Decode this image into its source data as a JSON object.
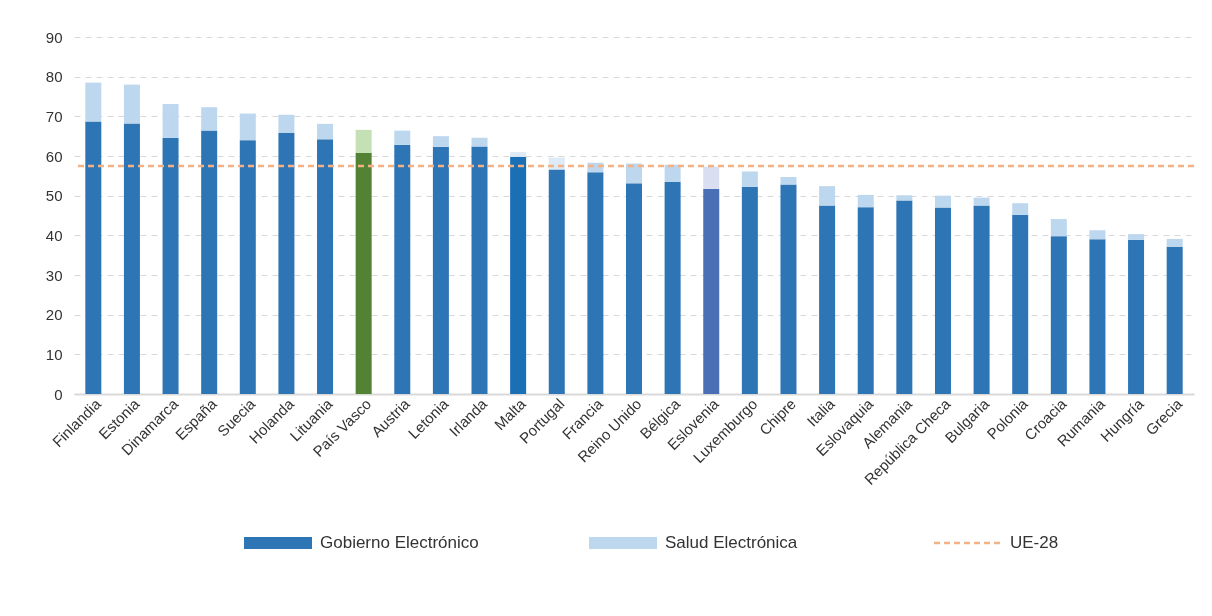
{
  "chart_data": {
    "type": "bar",
    "stacked": true,
    "categories": [
      "Finlandia",
      "Estonia",
      "Dinamarca",
      "España",
      "Suecia",
      "Holanda",
      "Lituania",
      "País Vasco",
      "Austria",
      "Letonia",
      "Irlanda",
      "Malta",
      "Portugal",
      "Francia",
      "Reino Unido",
      "Bélgica",
      "Eslovenia",
      "Luxemburgo",
      "Chipre",
      "Italia",
      "Eslovaquia",
      "Alemania",
      "República Checa",
      "Bulgaria",
      "Polonia",
      "Croacia",
      "Rumania",
      "Hungría",
      "Grecia"
    ],
    "series": [
      {
        "name": "Gobierno Electrónico",
        "color": "#2e75b6",
        "colors": [
          "#2e75b6",
          "#2e75b6",
          "#2e75b6",
          "#2e75b6",
          "#2e75b6",
          "#2e75b6",
          "#2e75b6",
          "#548235",
          "#2e75b6",
          "#2e75b6",
          "#2e75b6",
          "#1a6fb5",
          "#2e75b6",
          "#2e75b6",
          "#2e75b6",
          "#2e75b6",
          "#4a6fb5",
          "#2e75b6",
          "#2e75b6",
          "#2e75b6",
          "#2e75b6",
          "#2e75b6",
          "#2e75b6",
          "#2e75b6",
          "#2e75b6",
          "#2e75b6",
          "#2e75b6",
          "#2e75b6",
          "#2e75b6"
        ],
        "values": [
          68.7,
          68.2,
          64.6,
          66.4,
          64.0,
          65.8,
          64.2,
          60.8,
          62.8,
          62.3,
          62.4,
          59.8,
          56.6,
          55.9,
          53.1,
          53.5,
          51.7,
          52.2,
          52.8,
          47.5,
          47.1,
          48.8,
          47.0,
          47.5,
          45.2,
          39.8,
          39.0,
          38.9,
          37.1
        ]
      },
      {
        "name": "Salud Electrónica",
        "color": "#bdd7ee",
        "colors": [
          "#bdd7ee",
          "#bdd7ee",
          "#bdd7ee",
          "#bdd7ee",
          "#bdd7ee",
          "#bdd7ee",
          "#bdd7ee",
          "#c5e0b4",
          "#bdd7ee",
          "#bdd7ee",
          "#bdd7ee",
          "#deebf7",
          "#ddeaf7",
          "#bdd7ee",
          "#bdd7ee",
          "#bdd7ee",
          "#d9dff0",
          "#bdd7ee",
          "#bdd7ee",
          "#bdd7ee",
          "#bdd7ee",
          "#bdd7ee",
          "#bdd7ee",
          "#bdd7ee",
          "#bdd7ee",
          "#bdd7ee",
          "#bdd7ee",
          "#bdd7ee",
          "#bdd7ee"
        ],
        "values": [
          9.8,
          9.8,
          8.5,
          5.9,
          6.7,
          4.6,
          3.9,
          5.8,
          3.6,
          2.7,
          2.2,
          1.2,
          3.0,
          2.4,
          5.0,
          4.3,
          5.6,
          3.9,
          1.9,
          4.9,
          3.1,
          1.3,
          3.0,
          2.0,
          2.9,
          4.3,
          2.3,
          1.4,
          2.0
        ]
      }
    ],
    "ref_lines": [
      {
        "axis": "y",
        "value": 57.5,
        "label": "UE-28",
        "color": "#f4b183",
        "line_style": "dashed"
      }
    ],
    "ylim": [
      0,
      90
    ],
    "yticks": [
      0,
      10,
      20,
      30,
      40,
      50,
      60,
      70,
      80,
      90
    ],
    "grid": "y",
    "legend": "bottom"
  }
}
